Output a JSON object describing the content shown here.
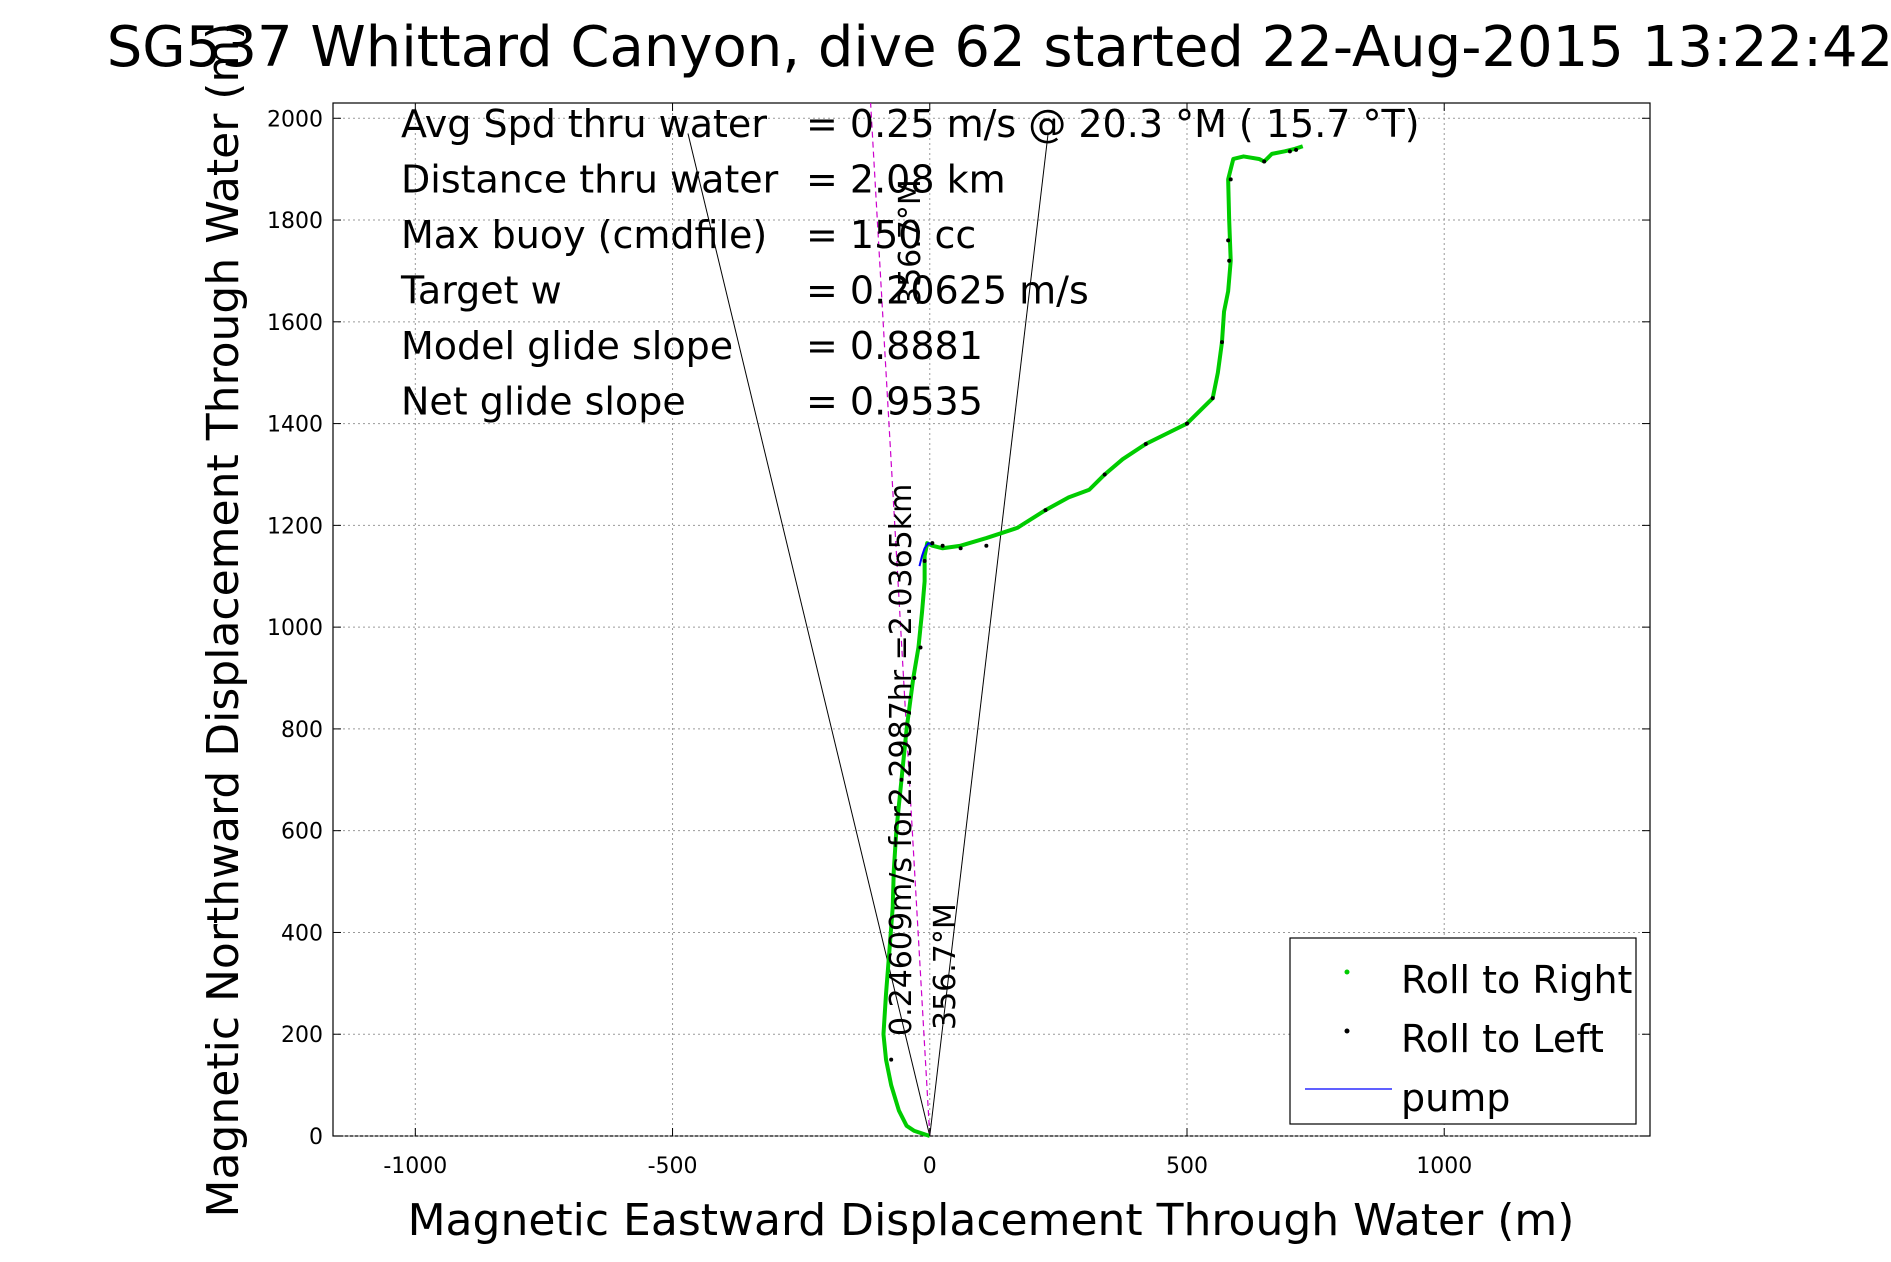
{
  "chart_data": {
    "type": "line",
    "title": "SG537 Whittard Canyon, dive 62 started 22-Aug-2015 13:22:42",
    "xlabel": "Magnetic Eastward Displacement Through Water (m)",
    "ylabel": "Magnetic Northward Displacement Through Water (m)",
    "xlim": [
      -1000,
      1000
    ],
    "ylim": [
      0,
      2000
    ],
    "xlim_visible": [
      -1160,
      1400
    ],
    "ylim_visible": [
      0,
      2030
    ],
    "xticks": [
      -1000,
      -500,
      0,
      500,
      1000
    ],
    "yticks": [
      0,
      200,
      400,
      600,
      800,
      1000,
      1200,
      1400,
      1600,
      1800,
      2000
    ],
    "grid": true,
    "legend_position": "bottom-right",
    "stats": [
      {
        "label": "Avg Spd thru water",
        "value": "=  0.25 m/s @  20.3 °M ( 15.7 °T)"
      },
      {
        "label": "Distance thru water",
        "value": "=  2.08 km"
      },
      {
        "label": "Max buoy (cmdfile)",
        "value": "= 150 cc"
      },
      {
        "label": "Target w",
        "value": "= 0.20625 m/s"
      },
      {
        "label": "Model glide slope",
        "value": "= 0.8881"
      },
      {
        "label": "Net glide slope",
        "value": "= 0.9535"
      }
    ],
    "annotations": {
      "heading_label_a": "356.7°M",
      "heading_label_b": "356.7°M",
      "current_label": "0.24609m/s for2.2987hr =2.0365km"
    },
    "reference_lines": [
      {
        "name": "cone-line-left",
        "x": [
          0,
          -470
        ],
        "y": [
          0,
          1970
        ]
      },
      {
        "name": "cone-line-right",
        "x": [
          0,
          230
        ],
        "y": [
          0,
          1970
        ]
      },
      {
        "name": "heading-line",
        "x": [
          0,
          -115
        ],
        "y": [
          0,
          2030
        ],
        "color": "#cc00cc"
      }
    ],
    "series": [
      {
        "name": "Roll to Right",
        "color": "#00cc00",
        "marker": "dot",
        "x": [
          0,
          -30,
          -45,
          -60,
          -75,
          -85,
          -90,
          -85,
          -78,
          -72,
          -70,
          -65,
          -55,
          -45,
          -32,
          -22,
          -15,
          -10,
          -10,
          -5,
          5,
          25,
          60,
          110,
          170,
          225,
          270,
          310,
          340,
          375,
          420,
          460,
          500,
          530,
          550,
          560,
          568,
          572,
          580,
          585,
          582,
          580,
          585,
          590,
          610,
          640,
          650,
          665,
          690,
          710,
          725
        ],
        "y": [
          0,
          10,
          20,
          50,
          100,
          150,
          200,
          280,
          370,
          450,
          520,
          600,
          700,
          800,
          900,
          960,
          1030,
          1090,
          1140,
          1165,
          1160,
          1155,
          1160,
          1175,
          1195,
          1230,
          1255,
          1270,
          1300,
          1330,
          1360,
          1380,
          1400,
          1430,
          1450,
          1500,
          1560,
          1620,
          1660,
          1720,
          1800,
          1880,
          1900,
          1920,
          1925,
          1920,
          1915,
          1930,
          1935,
          1940,
          1945
        ]
      },
      {
        "name": "Roll to Left",
        "color": "#000000",
        "marker": "dot",
        "x": [
          -75,
          -55,
          -30,
          -18,
          -10,
          5,
          25,
          60,
          110,
          225,
          340,
          420,
          500,
          550,
          568,
          582,
          580,
          585,
          650,
          700,
          712
        ],
        "y": [
          150,
          700,
          900,
          960,
          1130,
          1165,
          1160,
          1155,
          1160,
          1230,
          1300,
          1360,
          1400,
          1450,
          1560,
          1720,
          1760,
          1880,
          1915,
          1935,
          1938
        ]
      },
      {
        "name": "pump",
        "color": "#0000ff",
        "marker": "line",
        "x": [
          -20,
          -15,
          -10,
          -3,
          5
        ],
        "y": [
          1120,
          1140,
          1155,
          1165,
          1162
        ]
      }
    ]
  }
}
